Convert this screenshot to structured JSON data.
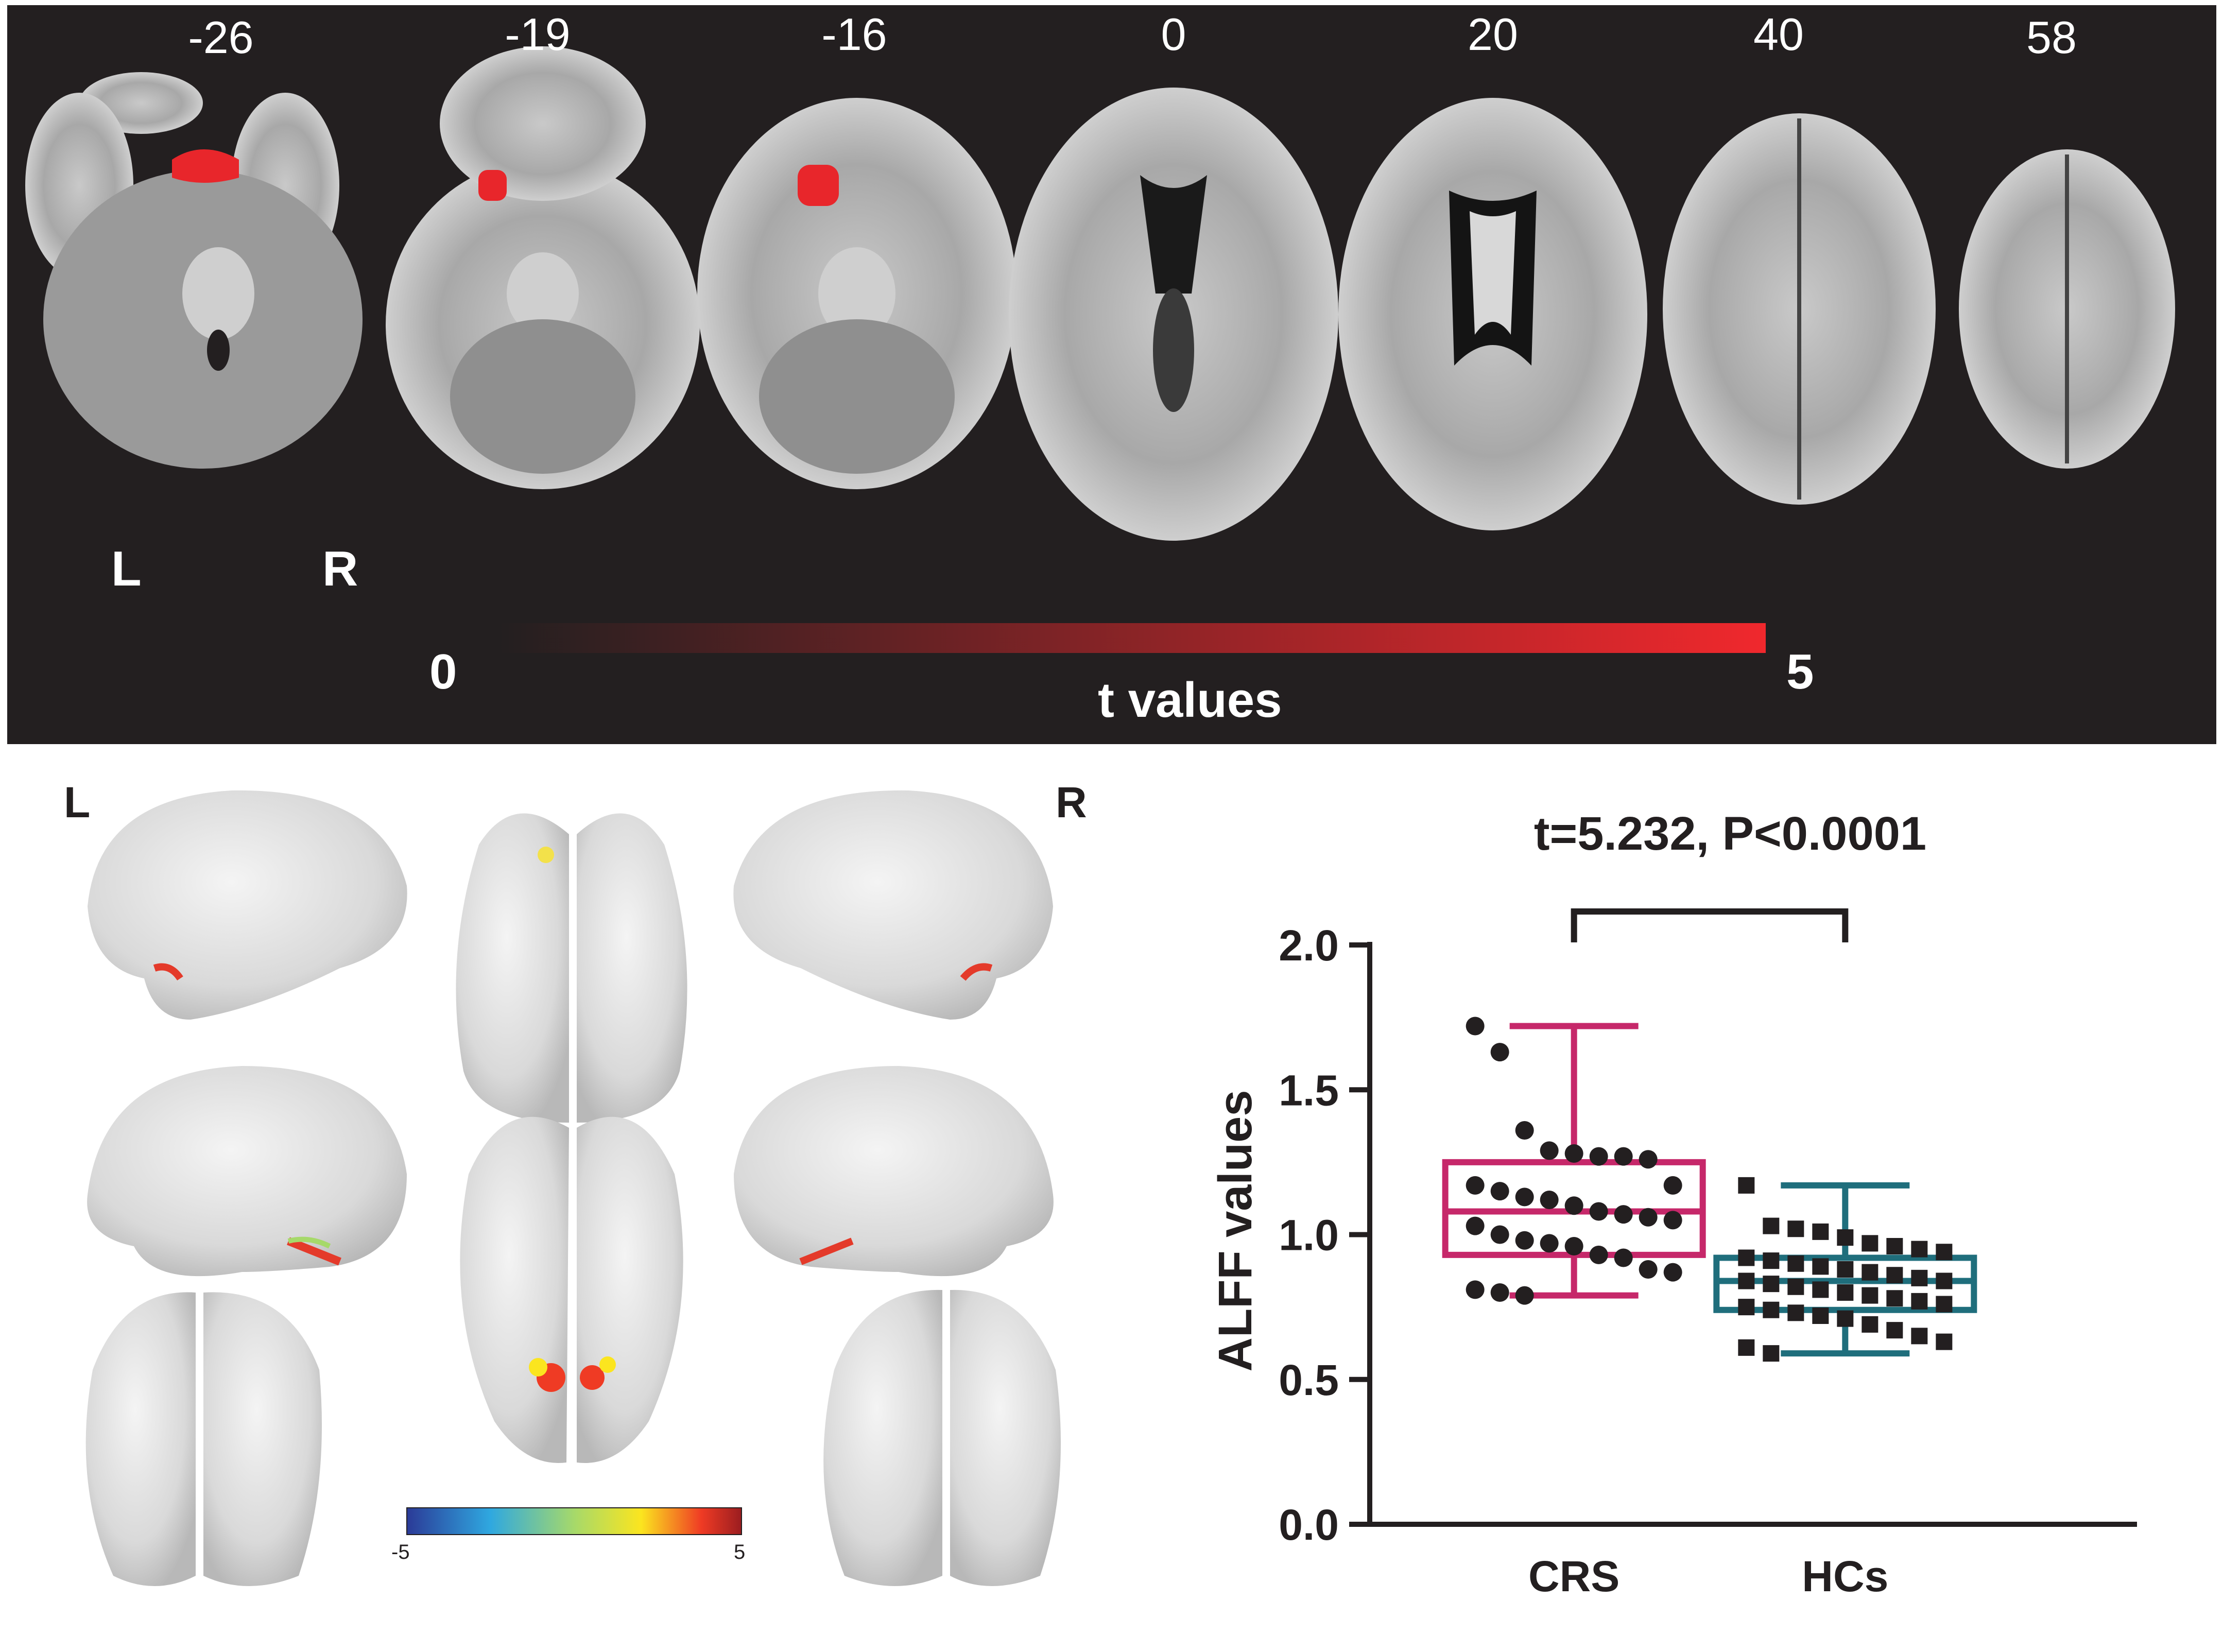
{
  "panel_a": {
    "slice_labels": [
      "-26",
      "-19",
      "-16",
      "0",
      "20",
      "40",
      "58"
    ],
    "left_label": "L",
    "right_label": "R",
    "colorbar": {
      "min_label": "0",
      "max_label": "5",
      "title": "t values",
      "color_start": "#231f20",
      "color_end": "#f0282d"
    }
  },
  "panel_b": {
    "left_label": "L",
    "right_label": "R",
    "colorbar": {
      "min_label": "-5",
      "max_label": "5",
      "colors": [
        "#2b3a97",
        "#2fa8e0",
        "#a6d96a",
        "#fbe51f",
        "#ef3b24",
        "#9b1d20"
      ]
    }
  },
  "chart_data": {
    "type": "box",
    "title": "t=5.232, P<0.0001",
    "ylabel": "ALFF values",
    "xlabel": "",
    "ylim": [
      0,
      2.0
    ],
    "yticks": [
      "0.0",
      "0.5",
      "1.0",
      "1.5",
      "2.0"
    ],
    "categories": [
      "CRS",
      "HCs"
    ],
    "series": [
      {
        "name": "CRS",
        "color": "#c6286a",
        "box": {
          "min": 0.79,
          "q1": 0.93,
          "median": 1.08,
          "q3": 1.25,
          "max": 1.72
        },
        "points": [
          1.72,
          1.63,
          1.36,
          1.29,
          1.28,
          1.27,
          1.27,
          1.26,
          1.17,
          1.17,
          1.15,
          1.13,
          1.12,
          1.1,
          1.08,
          1.07,
          1.06,
          1.05,
          1.03,
          1.0,
          0.98,
          0.97,
          0.96,
          0.93,
          0.92,
          0.88,
          0.87,
          0.81,
          0.8,
          0.79
        ]
      },
      {
        "name": "HCs",
        "color": "#1f6e7c",
        "box": {
          "min": 0.59,
          "q1": 0.74,
          "median": 0.84,
          "q3": 0.92,
          "max": 1.17
        },
        "points": [
          1.17,
          1.03,
          1.02,
          1.01,
          0.99,
          0.97,
          0.96,
          0.95,
          0.94,
          0.92,
          0.91,
          0.9,
          0.89,
          0.88,
          0.87,
          0.86,
          0.85,
          0.84,
          0.84,
          0.83,
          0.82,
          0.81,
          0.8,
          0.79,
          0.78,
          0.77,
          0.76,
          0.75,
          0.74,
          0.73,
          0.72,
          0.71,
          0.69,
          0.67,
          0.65,
          0.63,
          0.61,
          0.59
        ]
      }
    ],
    "significance_bracket": true
  }
}
